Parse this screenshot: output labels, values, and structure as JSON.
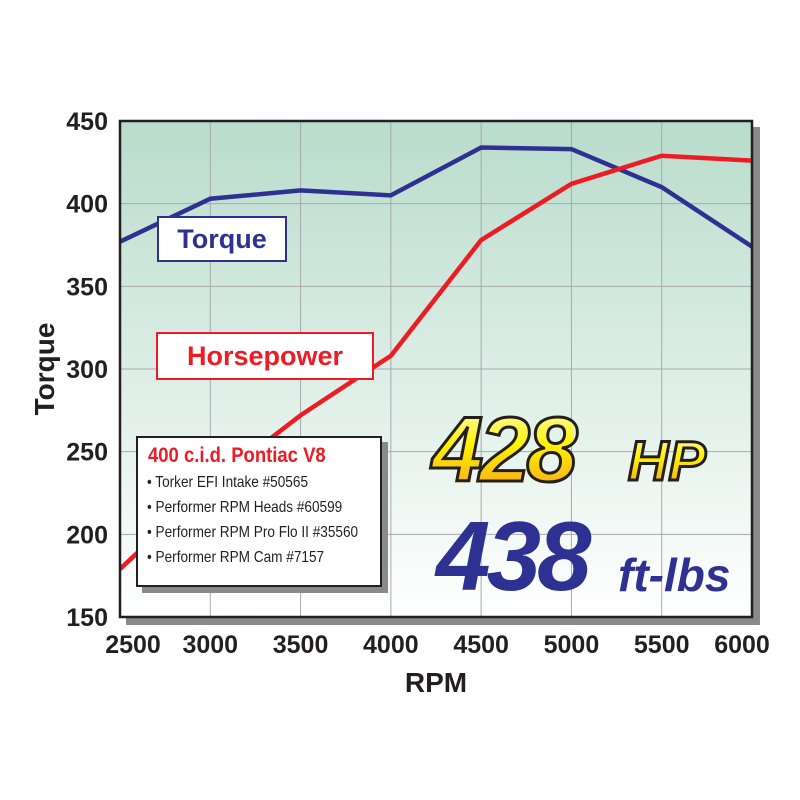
{
  "chart_data": {
    "type": "line",
    "xlabel": "RPM",
    "ylabel": "Torque",
    "xlim": [
      2500,
      6000
    ],
    "ylim": [
      150,
      450
    ],
    "x_ticks": [
      "2500",
      "3000",
      "3500",
      "4000",
      "4500",
      "5000",
      "5500",
      "6000"
    ],
    "y_ticks": [
      "150",
      "200",
      "250",
      "300",
      "350",
      "400",
      "450"
    ],
    "grid": true,
    "x": [
      2500,
      3000,
      3500,
      4000,
      4500,
      5000,
      5500,
      6000
    ],
    "series": [
      {
        "name": "Torque",
        "color": "#2e3192",
        "values": [
          377,
          403,
          408,
          405,
          434,
          433,
          410,
          374
        ]
      },
      {
        "name": "Horsepower",
        "color": "#ed1c24",
        "values": [
          179,
          230,
          272,
          308,
          378,
          412,
          429,
          426
        ]
      }
    ],
    "colors": {
      "background_top": "#b9dccb",
      "background_bottom": "#ffffff",
      "grid": "#a7a9ac"
    }
  },
  "legend": {
    "torque": "Torque",
    "horsepower": "Horsepower"
  },
  "info_box": {
    "title": "400 c.i.d. Pontiac V8",
    "items": [
      "• Torker EFI Intake #50565",
      "• Performer RPM Heads #60599",
      "• Performer RPM Pro Flo II #35560",
      "• Performer RPM Cam #7157"
    ]
  },
  "callouts": {
    "hp_value": "428",
    "hp_unit": "HP",
    "torque_value": "438",
    "torque_unit": "ft-lbs"
  }
}
